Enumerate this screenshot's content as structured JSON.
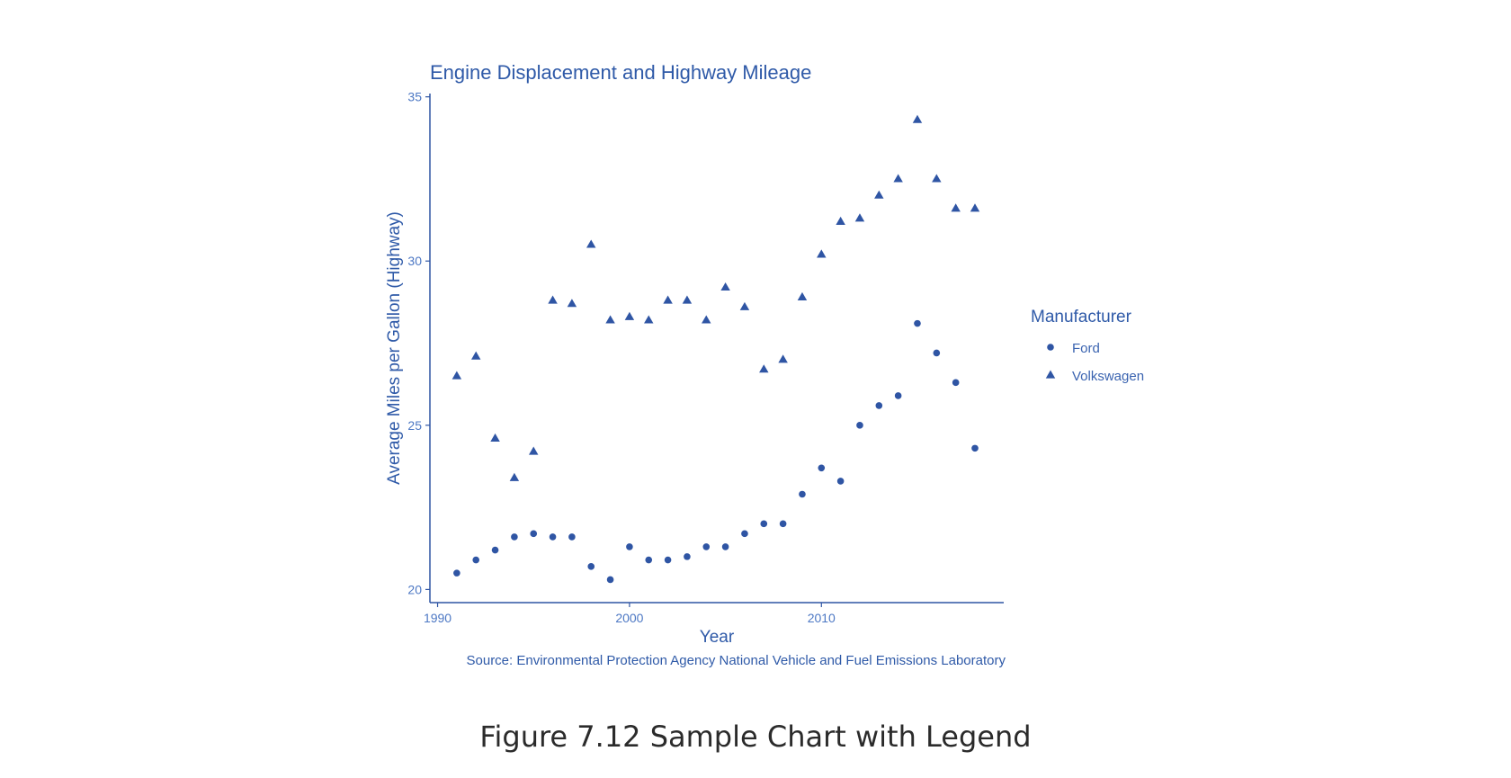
{
  "figure_caption": "Figure 7.12 Sample Chart with Legend",
  "colors": {
    "marks": "#2f55a4",
    "text": "#2f5aa8",
    "axis": "#2f55a4"
  },
  "chart_data": {
    "type": "scatter",
    "title": "Engine Displacement and Highway Mileage",
    "xlabel": "Year",
    "ylabel": "Average Miles per Gallon (Highway)",
    "caption": "Source: Environmental Protection Agency National Vehicle and Fuel Emissions Laboratory",
    "xlim": [
      1989.6,
      2019.5
    ],
    "ylim": [
      19.6,
      35.1
    ],
    "x_ticks": [
      1990,
      2000,
      2010
    ],
    "y_ticks": [
      20,
      25,
      30,
      35
    ],
    "grid": false,
    "legend": {
      "title": "Manufacturer",
      "position": "right"
    },
    "series": [
      {
        "name": "Ford",
        "marker": "circle",
        "x": [
          1991,
          1992,
          1993,
          1994,
          1995,
          1996,
          1997,
          1998,
          1999,
          2000,
          2001,
          2002,
          2003,
          2004,
          2005,
          2006,
          2007,
          2008,
          2009,
          2010,
          2011,
          2012,
          2013,
          2014,
          2015,
          2016,
          2017,
          2018
        ],
        "y": [
          20.5,
          20.9,
          21.2,
          21.6,
          21.7,
          21.6,
          21.6,
          20.7,
          20.3,
          21.3,
          20.9,
          20.9,
          21.0,
          21.3,
          21.3,
          21.7,
          22.0,
          22.0,
          22.9,
          23.7,
          23.3,
          25.0,
          25.6,
          25.9,
          28.1,
          27.2,
          26.3,
          24.3
        ]
      },
      {
        "name": "Volkswagen",
        "marker": "triangle",
        "x": [
          1991,
          1992,
          1993,
          1994,
          1995,
          1996,
          1997,
          1998,
          1999,
          2000,
          2001,
          2002,
          2003,
          2004,
          2005,
          2006,
          2007,
          2008,
          2009,
          2010,
          2011,
          2012,
          2013,
          2014,
          2015,
          2016,
          2017,
          2018
        ],
        "y": [
          26.5,
          27.1,
          24.6,
          23.4,
          24.2,
          28.8,
          28.7,
          30.5,
          28.2,
          28.3,
          28.2,
          28.8,
          28.8,
          28.2,
          29.2,
          28.6,
          26.7,
          27.0,
          28.9,
          30.2,
          31.2,
          31.3,
          32.0,
          32.5,
          34.3,
          32.5,
          31.6,
          31.6
        ]
      }
    ]
  }
}
